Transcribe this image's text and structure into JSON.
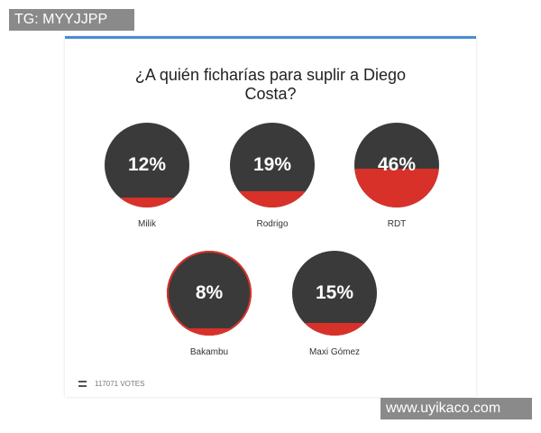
{
  "watermark_top": "TG: MYYJJPP",
  "watermark_bottom": "www.uyikaco.com",
  "poll": {
    "question": "¿A quién ficharías para suplir a Diego Costa?",
    "options": [
      {
        "name": "Milik",
        "percent": 12,
        "percent_label": "12%"
      },
      {
        "name": "Rodrigo",
        "percent": 19,
        "percent_label": "19%"
      },
      {
        "name": "RDT",
        "percent": 46,
        "percent_label": "46%"
      },
      {
        "name": "Bakambu",
        "percent": 8,
        "percent_label": "8%"
      },
      {
        "name": "Maxi Gómez",
        "percent": 15,
        "percent_label": "15%"
      }
    ],
    "votes": "117071 VOTES"
  }
}
